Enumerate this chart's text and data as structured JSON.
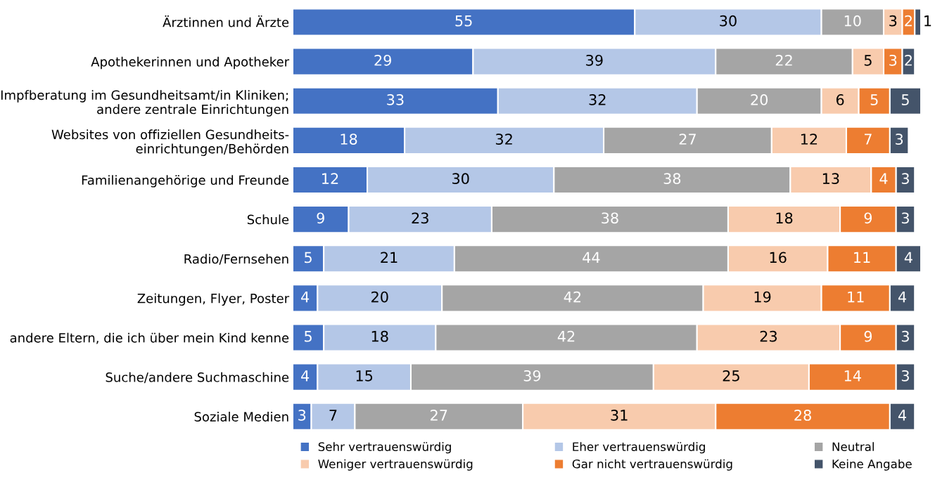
{
  "chart_data": {
    "type": "bar",
    "orientation": "horizontal",
    "stacked": true,
    "data_labels": true,
    "legend": "bottom",
    "grid": false,
    "tick_labels": "y",
    "categories": [
      "Ärztinnen und Ärzte",
      "Apothekerinnen und Apotheker",
      "Impfberatung im Gesundheitsamt/in Kliniken;\nandere zentrale Einrichtungen",
      "Websites von offiziellen Gesundheits-\neinrichtungen/Behörden",
      "Familienangehörige und Freunde",
      "Schule",
      "Radio/Fernsehen",
      "Zeitungen, Flyer, Poster",
      "andere Eltern, die ich über mein Kind kenne",
      "Suche/andere Suchmaschine",
      "Soziale Medien"
    ],
    "series": [
      {
        "name": "Sehr vertrauenswürdig",
        "color": "#4472c4",
        "values": [
          55,
          29,
          33,
          18,
          12,
          9,
          5,
          4,
          5,
          4,
          3
        ]
      },
      {
        "name": "Eher vertrauenswürdig",
        "color": "#b4c7e7",
        "values": [
          30,
          39,
          32,
          32,
          30,
          23,
          21,
          20,
          18,
          15,
          7
        ]
      },
      {
        "name": "Neutral",
        "color": "#a5a5a5",
        "values": [
          10,
          22,
          20,
          27,
          38,
          38,
          44,
          42,
          42,
          39,
          27
        ]
      },
      {
        "name": "Weniger vertrauenswürdig",
        "color": "#f8cbad",
        "values": [
          3,
          5,
          6,
          12,
          13,
          18,
          16,
          19,
          23,
          25,
          31
        ]
      },
      {
        "name": "Gar nicht vertrauenswürdig",
        "color": "#ed7d31",
        "values": [
          2,
          3,
          5,
          7,
          4,
          9,
          11,
          11,
          9,
          14,
          28
        ]
      },
      {
        "name": "Keine Angabe",
        "color": "#44546a",
        "values": [
          1,
          2,
          5,
          3,
          3,
          3,
          4,
          4,
          3,
          3,
          4
        ]
      }
    ]
  }
}
